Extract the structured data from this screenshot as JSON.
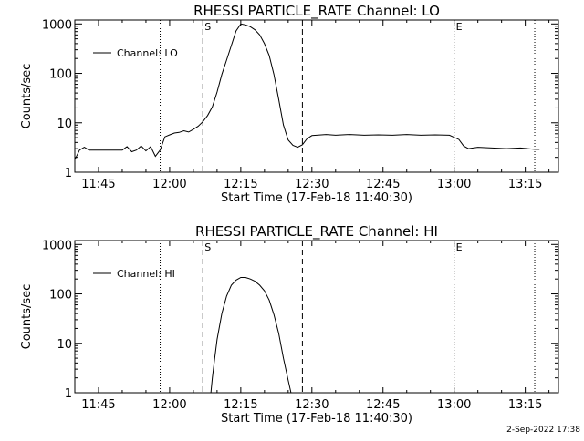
{
  "footer": {
    "timestamp": "2-Sep-2022 17:38"
  },
  "chart_data": [
    {
      "type": "line",
      "title": "RHESSI PARTICLE_RATE Channel: LO",
      "xlabel": "Start Time (17-Feb-18 11:40:30)",
      "ylabel": "Counts/sec",
      "y_scale": "log",
      "xlim": [
        "11:40",
        "13:22"
      ],
      "ylim": [
        1,
        1200
      ],
      "x_ticks": [
        "11:45",
        "12:00",
        "12:15",
        "12:30",
        "12:45",
        "13:00",
        "13:15"
      ],
      "y_ticks": [
        {
          "value": 1,
          "label": "1"
        },
        {
          "value": 10,
          "label": "10"
        },
        {
          "value": 100,
          "label": "100"
        },
        {
          "value": 1000,
          "label": "1000"
        }
      ],
      "legend": {
        "label": "Channel: LO",
        "position": "top-left"
      },
      "markers": [
        {
          "time": "12:07",
          "label": "S",
          "style": "dashed"
        },
        {
          "time": "12:28",
          "label": "",
          "style": "dashed"
        },
        {
          "time": "13:00",
          "label": "E",
          "style": "dotted"
        },
        {
          "time": "11:58",
          "label": "",
          "style": "dotted"
        },
        {
          "time": "13:17",
          "label": "",
          "style": "dotted"
        }
      ],
      "series": [
        {
          "name": "Channel: LO",
          "x": [
            "11:40",
            "11:41",
            "11:42",
            "11:43",
            "11:44",
            "11:45",
            "11:46",
            "11:48",
            "11:50",
            "11:51",
            "11:52",
            "11:53",
            "11:54",
            "11:55",
            "11:56",
            "11:57",
            "11:58",
            "11:59",
            "12:00",
            "12:01",
            "12:02",
            "12:03",
            "12:04",
            "12:05",
            "12:06",
            "12:07",
            "12:08",
            "12:09",
            "12:10",
            "12:11",
            "12:12",
            "12:13",
            "12:14",
            "12:15",
            "12:16",
            "12:17",
            "12:18",
            "12:19",
            "12:20",
            "12:21",
            "12:22",
            "12:23",
            "12:24",
            "12:25",
            "12:26",
            "12:27",
            "12:28",
            "12:29",
            "12:30",
            "12:31",
            "12:33",
            "12:35",
            "12:38",
            "12:41",
            "12:44",
            "12:47",
            "12:50",
            "12:53",
            "12:56",
            "12:59",
            "13:01",
            "13:02",
            "13:03",
            "13:05",
            "13:08",
            "13:11",
            "13:14",
            "13:17",
            "13:18"
          ],
          "values": [
            1.8,
            2.8,
            3.2,
            2.8,
            2.8,
            2.8,
            2.8,
            2.8,
            2.8,
            3.3,
            2.6,
            2.8,
            3.4,
            2.7,
            3.3,
            2.1,
            2.8,
            5.2,
            5.7,
            6.2,
            6.4,
            6.9,
            6.5,
            7.4,
            8.5,
            10.5,
            14,
            21,
            42,
            95,
            185,
            365,
            720,
            1000,
            960,
            880,
            760,
            600,
            400,
            230,
            95,
            30,
            9,
            4.5,
            3.5,
            3.2,
            3.6,
            4.8,
            5.5,
            5.6,
            5.8,
            5.6,
            5.8,
            5.6,
            5.7,
            5.6,
            5.8,
            5.6,
            5.7,
            5.6,
            4.6,
            3.4,
            3.0,
            3.2,
            3.1,
            3.0,
            3.1,
            2.9,
            2.9
          ]
        }
      ]
    },
    {
      "type": "line",
      "title": "RHESSI PARTICLE_RATE Channel: HI",
      "xlabel": "Start Time (17-Feb-18 11:40:30)",
      "ylabel": "Counts/sec",
      "y_scale": "log",
      "xlim": [
        "11:40",
        "13:22"
      ],
      "ylim": [
        1,
        1200
      ],
      "x_ticks": [
        "11:45",
        "12:00",
        "12:15",
        "12:30",
        "12:45",
        "13:00",
        "13:15"
      ],
      "y_ticks": [
        {
          "value": 1,
          "label": "1"
        },
        {
          "value": 10,
          "label": "10"
        },
        {
          "value": 100,
          "label": "100"
        },
        {
          "value": 1000,
          "label": "1000"
        }
      ],
      "legend": {
        "label": "Channel: HI",
        "position": "top-left"
      },
      "markers": [
        {
          "time": "12:07",
          "label": "S",
          "style": "dashed"
        },
        {
          "time": "12:28",
          "label": "",
          "style": "dashed"
        },
        {
          "time": "13:00",
          "label": "E",
          "style": "dotted"
        },
        {
          "time": "11:58",
          "label": "",
          "style": "dotted"
        },
        {
          "time": "13:17",
          "label": "",
          "style": "dotted"
        }
      ],
      "series": [
        {
          "name": "Channel: HI",
          "x": [
            "12:08.7",
            "12:09",
            "12:09.5",
            "12:10",
            "12:11",
            "12:12",
            "12:13",
            "12:14",
            "12:15",
            "12:16",
            "12:17",
            "12:18",
            "12:19",
            "12:20",
            "12:21",
            "12:22",
            "12:23",
            "12:24",
            "12:25",
            "12:25.6"
          ],
          "values": [
            1,
            2,
            5,
            12,
            40,
            90,
            150,
            190,
            215,
            215,
            200,
            180,
            150,
            115,
            75,
            38,
            16,
            5,
            1.8,
            1
          ]
        }
      ]
    }
  ]
}
